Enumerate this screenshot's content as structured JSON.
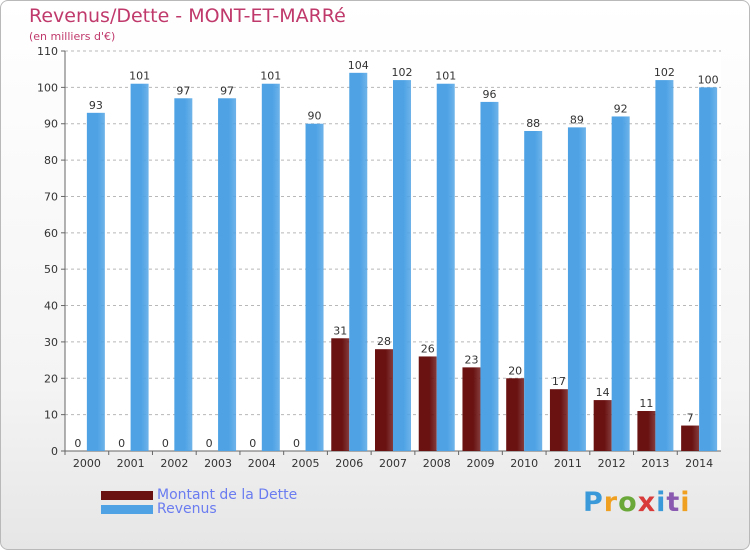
{
  "title": "Revenus/Dette - MONT-ET-MARRé",
  "subtitle": "(en milliers d'€)",
  "logo": {
    "text": "Proxiti",
    "colors": [
      "#3a9ad9",
      "#f0a020",
      "#6aa83a",
      "#d93a3a",
      "#3a9ad9",
      "#8a5ab0",
      "#f0a020"
    ]
  },
  "colors": {
    "dette": "#6a1212",
    "revenus": "#4fa3e5",
    "grid": "#b8b8b8",
    "axis_text": "#333333",
    "title": "#c0396b",
    "legend_text": "#6a7cf0"
  },
  "chart_data": {
    "type": "bar",
    "title": "Revenus/Dette - MONT-ET-MARRé",
    "subtitle": "(en milliers d'€)",
    "categories": [
      "2000",
      "2001",
      "2002",
      "2003",
      "2004",
      "2005",
      "2006",
      "2007",
      "2008",
      "2009",
      "2010",
      "2011",
      "2012",
      "2013",
      "2014"
    ],
    "series": [
      {
        "name": "Montant de la Dette",
        "values": [
          0,
          0,
          0,
          0,
          0,
          0,
          31,
          28,
          26,
          23,
          20,
          17,
          14,
          11,
          7
        ]
      },
      {
        "name": "Revenus",
        "values": [
          93,
          101,
          97,
          97,
          101,
          90,
          104,
          102,
          101,
          96,
          88,
          89,
          92,
          102,
          100
        ]
      }
    ],
    "ylim": [
      0,
      110
    ],
    "yticks": [
      0,
      10,
      20,
      30,
      40,
      50,
      60,
      70,
      80,
      90,
      100,
      110
    ],
    "grid": true,
    "data_labels": true,
    "legend": "bottom-left"
  }
}
